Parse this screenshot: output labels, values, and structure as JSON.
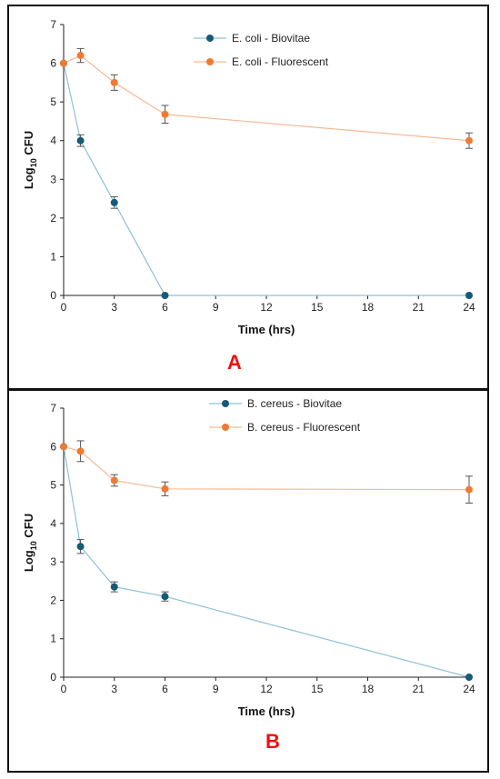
{
  "chart_data": [
    {
      "type": "line",
      "panel_label": "A",
      "xlabel": "Time (hrs)",
      "ylabel_main": "Log",
      "ylabel_sub": "10",
      "ylabel_tail": " CFU",
      "x_ticks": [
        0,
        3,
        6,
        9,
        12,
        15,
        18,
        21,
        24
      ],
      "y_ticks": [
        0,
        1,
        2,
        3,
        4,
        5,
        6,
        7
      ],
      "xlim": [
        0,
        24
      ],
      "ylim": [
        0,
        7
      ],
      "legend_position": "top-center",
      "grid": false,
      "series": [
        {
          "name": "E. coli - Biovitae",
          "line_color": "#8fc0d8",
          "marker_color": "#155a79",
          "points": [
            {
              "x": 0,
              "y": 6.0,
              "err": 0
            },
            {
              "x": 1,
              "y": 4.0,
              "err": 0.15
            },
            {
              "x": 3,
              "y": 2.4,
              "err": 0.15
            },
            {
              "x": 6,
              "y": 0,
              "err": 0
            },
            {
              "x": 24,
              "y": 0,
              "err": 0
            }
          ]
        },
        {
          "name": "E. coli - Fluorescent",
          "line_color": "#f6b994",
          "marker_color": "#f07a32",
          "points": [
            {
              "x": 0,
              "y": 6.0,
              "err": 0
            },
            {
              "x": 1,
              "y": 6.2,
              "err": 0.18
            },
            {
              "x": 3,
              "y": 5.5,
              "err": 0.2
            },
            {
              "x": 6,
              "y": 4.68,
              "err": 0.23
            },
            {
              "x": 24,
              "y": 4.0,
              "err": 0.2
            }
          ]
        }
      ]
    },
    {
      "type": "line",
      "panel_label": "B",
      "xlabel": "Time (hrs)",
      "ylabel_main": "Log",
      "ylabel_sub": "10",
      "ylabel_tail": " CFU",
      "x_ticks": [
        0,
        3,
        6,
        9,
        12,
        15,
        18,
        21,
        24
      ],
      "y_ticks": [
        0,
        1,
        2,
        3,
        4,
        5,
        6,
        7
      ],
      "xlim": [
        0,
        24
      ],
      "ylim": [
        0,
        7
      ],
      "legend_position": "top-center",
      "grid": false,
      "series": [
        {
          "name": "B. cereus - Biovitae",
          "line_color": "#8fc0d8",
          "marker_color": "#155a79",
          "points": [
            {
              "x": 0,
              "y": 6.0,
              "err": 0
            },
            {
              "x": 1,
              "y": 3.4,
              "err": 0.18
            },
            {
              "x": 3,
              "y": 2.35,
              "err": 0.13
            },
            {
              "x": 6,
              "y": 2.1,
              "err": 0.12
            },
            {
              "x": 24,
              "y": 0,
              "err": 0
            }
          ]
        },
        {
          "name": "B. cereus - Fluorescent",
          "line_color": "#f6b994",
          "marker_color": "#f07a32",
          "points": [
            {
              "x": 0,
              "y": 6.0,
              "err": 0
            },
            {
              "x": 1,
              "y": 5.88,
              "err": 0.27
            },
            {
              "x": 3,
              "y": 5.12,
              "err": 0.15
            },
            {
              "x": 6,
              "y": 4.9,
              "err": 0.18
            },
            {
              "x": 24,
              "y": 4.88,
              "err": 0.35
            }
          ]
        }
      ]
    }
  ]
}
